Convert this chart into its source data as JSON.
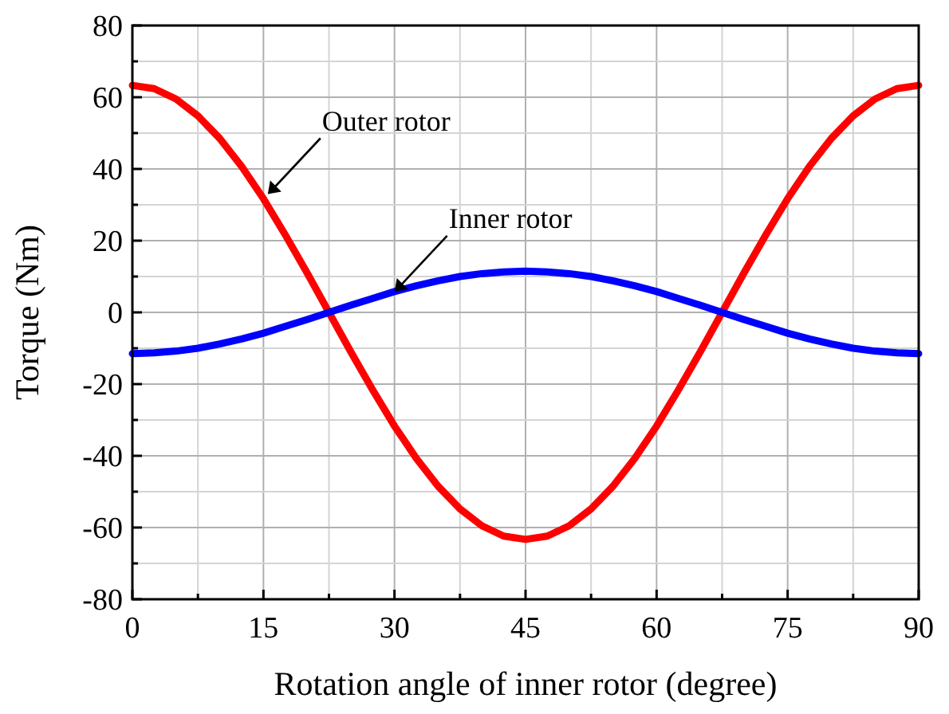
{
  "chart_data": {
    "type": "line",
    "xlabel": "Rotation angle of inner rotor (degree)",
    "ylabel": "Torque (Nm)",
    "x": [
      0,
      2.5,
      5,
      7.5,
      10,
      12.5,
      15,
      17.5,
      20,
      22.5,
      25,
      27.5,
      30,
      32.5,
      35,
      37.5,
      40,
      42.5,
      45,
      47.5,
      50,
      52.5,
      55,
      57.5,
      60,
      62.5,
      65,
      67.5,
      70,
      72.5,
      75,
      77.5,
      80,
      82.5,
      85,
      87.5,
      90
    ],
    "series": [
      {
        "color": "#ff0000",
        "values": [
          63.3,
          62.4,
          59.5,
          54.8,
          48.5,
          40.7,
          31.7,
          21.6,
          11,
          0,
          -11,
          -21.6,
          -31.7,
          -40.7,
          -48.5,
          -54.8,
          -59.5,
          -62.4,
          -63.3,
          -62.4,
          -59.5,
          -54.8,
          -48.5,
          -40.7,
          -31.7,
          -21.6,
          -11,
          0,
          11,
          21.6,
          31.7,
          40.7,
          48.5,
          54.8,
          59.5,
          62.4,
          63.3
        ]
      },
      {
        "color": "#0000ff",
        "values": [
          -11.5,
          -11.3,
          -10.8,
          -10,
          -8.8,
          -7.4,
          -5.8,
          -3.9,
          -2,
          0,
          2,
          3.9,
          5.8,
          7.4,
          8.8,
          10,
          10.8,
          11.3,
          11.5,
          11.3,
          10.8,
          10,
          8.8,
          7.4,
          5.8,
          3.9,
          2,
          0,
          -2,
          -3.9,
          -5.8,
          -7.4,
          -8.8,
          -10,
          -10.8,
          -11.3,
          -11.5
        ]
      }
    ],
    "xlim": [
      0,
      90
    ],
    "xticks": [
      0,
      {
        "value": 7.5,
        "label": null
      },
      15,
      {
        "value": 22.5,
        "label": null
      },
      30,
      {
        "value": 37.5,
        "label": null
      },
      45,
      {
        "value": 52.5,
        "label": null
      },
      60,
      {
        "value": 67.5,
        "label": null
      },
      75,
      {
        "value": 82.5,
        "label": null
      },
      90
    ],
    "ylim": [
      -80,
      80
    ],
    "yticks": [
      -80,
      {
        "value": -70,
        "label": null
      },
      -60,
      {
        "value": -50,
        "label": null
      },
      -40,
      {
        "value": -30,
        "label": null
      },
      -20,
      {
        "value": -10,
        "label": null
      },
      0,
      {
        "value": 10,
        "label": null
      },
      20,
      {
        "value": 30,
        "label": null
      },
      40,
      {
        "value": 50,
        "label": null
      },
      60,
      {
        "value": 70,
        "label": null
      },
      80
    ],
    "grid": true,
    "marker": "none",
    "line_style": "solid",
    "annotations": [
      {
        "text": "Outer rotor",
        "x": 15.5,
        "y": 33
      },
      {
        "text": "Inner rotor",
        "x": 30,
        "y": 5.8
      }
    ]
  }
}
